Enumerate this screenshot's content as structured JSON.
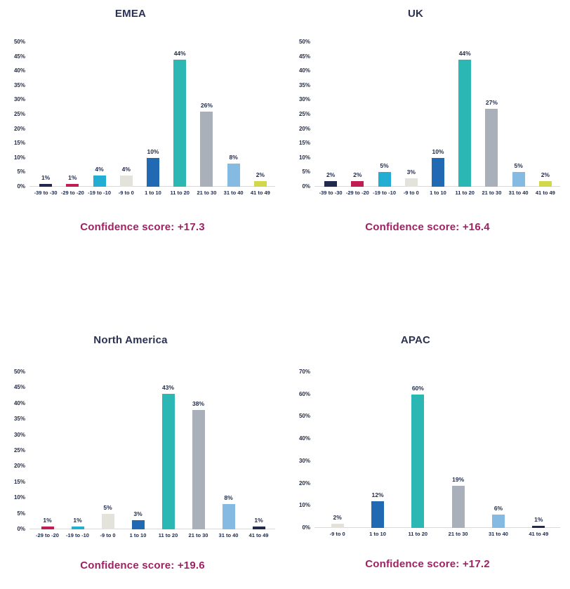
{
  "page": {
    "background": "#ffffff"
  },
  "palette": {
    "navy": "#212a4c",
    "crimson": "#c11d53",
    "cyan": "#22aed2",
    "light_gray": "#e3e3db",
    "blue": "#2169b3",
    "teal": "#2bb7b3",
    "gray": "#a9b0ba",
    "light_blue": "#85bae3",
    "yellow_green": "#d2d84b",
    "title_color": "#2b3153",
    "tick_label_color": "#1f2a4a",
    "value_label_color": "#1f2a4a",
    "confidence_color": "#9e2164",
    "axis_line_color": "#d9d9d9"
  },
  "chart_data": [
    {
      "id": "emea",
      "type": "bar",
      "title": "EMEA",
      "categories": [
        "-39 to -30",
        "-29 to -20",
        "-19 to -10",
        "-9 to 0",
        "1 to 10",
        "11 to 20",
        "21 to 30",
        "31 to 40",
        "41 to 49"
      ],
      "values": [
        1,
        1,
        4,
        4,
        10,
        44,
        26,
        8,
        2
      ],
      "value_labels": [
        "1%",
        "1%",
        "4%",
        "4%",
        "10%",
        "44%",
        "26%",
        "8%",
        "2%"
      ],
      "bar_colors": [
        "navy",
        "crimson",
        "cyan",
        "light_gray",
        "blue",
        "teal",
        "gray",
        "light_blue",
        "yellow_green"
      ],
      "ylim": [
        0,
        50
      ],
      "ytick_step": 5,
      "ytick_suffix": "%",
      "grid": false,
      "legend": false,
      "confidence_label": "Confidence score: +17.3",
      "confidence_score": "+17.3"
    },
    {
      "id": "uk",
      "type": "bar",
      "title": "UK",
      "categories": [
        "-39 to -30",
        "-29 to -20",
        "-19 to -10",
        "-9 to 0",
        "1 to 10",
        "11 to 20",
        "21 to 30",
        "31 to 40",
        "41 to 49"
      ],
      "values": [
        2,
        2,
        5,
        3,
        10,
        44,
        27,
        5,
        2
      ],
      "value_labels": [
        "2%",
        "2%",
        "5%",
        "3%",
        "10%",
        "44%",
        "27%",
        "5%",
        "2%"
      ],
      "bar_colors": [
        "navy",
        "crimson",
        "cyan",
        "light_gray",
        "blue",
        "teal",
        "gray",
        "light_blue",
        "yellow_green"
      ],
      "ylim": [
        0,
        50
      ],
      "ytick_step": 5,
      "ytick_suffix": "%",
      "grid": false,
      "legend": false,
      "confidence_label": "Confidence score: +16.4",
      "confidence_score": "+16.4"
    },
    {
      "id": "north-america",
      "type": "bar",
      "title": "North America",
      "categories": [
        "-29 to -20",
        "-19 to -10",
        "-9 to 0",
        "1 to 10",
        "11 to 20",
        "21 to 30",
        "31 to 40",
        "41 to 49"
      ],
      "values": [
        1,
        1,
        5,
        3,
        43,
        38,
        8,
        1
      ],
      "value_labels": [
        "1%",
        "1%",
        "5%",
        "3%",
        "43%",
        "38%",
        "8%",
        "1%"
      ],
      "bar_colors": [
        "crimson",
        "cyan",
        "light_gray",
        "blue",
        "teal",
        "gray",
        "light_blue",
        "navy"
      ],
      "ylim": [
        0,
        50
      ],
      "ytick_step": 5,
      "ytick_suffix": "%",
      "grid": false,
      "legend": false,
      "confidence_label": "Confidence score: +19.6",
      "confidence_score": "+19.6"
    },
    {
      "id": "apac",
      "type": "bar",
      "title": "APAC",
      "categories": [
        "-9 to 0",
        "1 to 10",
        "11 to 20",
        "21 to 30",
        "31 to 40",
        "41 to 49"
      ],
      "values": [
        2,
        12,
        60,
        19,
        6,
        1
      ],
      "value_labels": [
        "2%",
        "12%",
        "60%",
        "19%",
        "6%",
        "1%"
      ],
      "bar_colors": [
        "light_gray",
        "blue",
        "teal",
        "gray",
        "light_blue",
        "navy"
      ],
      "ylim": [
        0,
        70
      ],
      "ytick_step": 10,
      "ytick_suffix": "%",
      "grid": false,
      "legend": false,
      "confidence_label": "Confidence score: +17.2",
      "confidence_score": "+17.2"
    }
  ]
}
